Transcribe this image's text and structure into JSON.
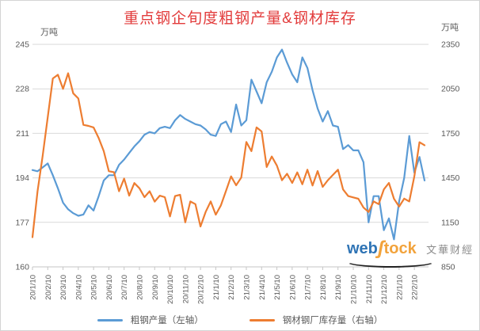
{
  "title_color": "#e23b3b",
  "watermark": {
    "web": "web",
    "swoosh": "ʃ",
    "tock": "tock",
    "suffix": "文華财經"
  },
  "chart_data": {
    "type": "line",
    "title": "重点钢企旬度粗钢产量&钢材库存",
    "grid": "horizontal-only",
    "legend_position": "bottom",
    "left_axis": {
      "unit": "万吨",
      "min": 160,
      "max": 245,
      "ticks": [
        245,
        228,
        211,
        194,
        177,
        160
      ]
    },
    "right_axis": {
      "unit": "万吨",
      "min": 850,
      "max": 2350,
      "ticks": [
        2350,
        2050,
        1750,
        1450,
        1150,
        850
      ]
    },
    "x_tick_labels": [
      "20/1/10",
      "20/2/10",
      "20/3/10",
      "20/4/10",
      "20/5/10",
      "20/6/10",
      "20/7/10",
      "20/8/10",
      "20/9/10",
      "20/10/10",
      "20/11/10",
      "20/12/10",
      "21/1/10",
      "21/2/10",
      "21/3/10",
      "21/4/10",
      "21/5/10",
      "21/6/10",
      "21/7/10",
      "21/8/10",
      "21/9/10",
      "21/10/10",
      "21/11/10",
      "21/12/10",
      "22/1/10",
      "22/2/10"
    ],
    "x": [
      "20/1/10",
      "20/1/20",
      "20/1/31",
      "20/2/10",
      "20/2/20",
      "20/2/29",
      "20/3/10",
      "20/3/20",
      "20/3/31",
      "20/4/10",
      "20/4/20",
      "20/4/30",
      "20/5/10",
      "20/5/20",
      "20/5/31",
      "20/6/10",
      "20/6/20",
      "20/6/30",
      "20/7/10",
      "20/7/20",
      "20/7/31",
      "20/8/10",
      "20/8/20",
      "20/8/31",
      "20/9/10",
      "20/9/20",
      "20/9/30",
      "20/10/10",
      "20/10/20",
      "20/10/31",
      "20/11/10",
      "20/11/20",
      "20/11/30",
      "20/12/10",
      "20/12/20",
      "20/12/31",
      "21/1/10",
      "21/1/20",
      "21/1/31",
      "21/2/10",
      "21/2/20",
      "21/2/28",
      "21/3/10",
      "21/3/20",
      "21/3/31",
      "21/4/10",
      "21/4/20",
      "21/4/30",
      "21/5/10",
      "21/5/20",
      "21/5/31",
      "21/6/10",
      "21/6/20",
      "21/6/30",
      "21/7/10",
      "21/7/20",
      "21/7/31",
      "21/8/10",
      "21/8/20",
      "21/8/31",
      "21/9/10",
      "21/9/20",
      "21/9/30",
      "21/10/10",
      "21/10/20",
      "21/10/31",
      "21/11/10",
      "21/11/20",
      "21/11/30",
      "21/12/10",
      "21/12/20",
      "21/12/31",
      "22/1/10",
      "22/1/20",
      "22/1/31",
      "22/2/10",
      "22/2/20",
      "22/2/28"
    ],
    "series": [
      {
        "name": "粗钢产量（左轴）",
        "axis": "left",
        "color": "#5b9bd5",
        "values": [
          197,
          196.5,
          198,
          199.5,
          195,
          190,
          184.5,
          182,
          180.5,
          179.5,
          180,
          183.5,
          181.5,
          187,
          193,
          195,
          195,
          199,
          201,
          203.5,
          206,
          208,
          210.5,
          211.5,
          211,
          213,
          213.5,
          213,
          216,
          218,
          216.5,
          215.5,
          214.5,
          214,
          212.5,
          210.5,
          210,
          214.5,
          215.5,
          211.5,
          222,
          214,
          216,
          231.5,
          227,
          222.5,
          230.5,
          234.5,
          240,
          243,
          238,
          233.5,
          230.5,
          240,
          236,
          227.5,
          220.5,
          215.5,
          219.5,
          214,
          213.5,
          205,
          206.5,
          204.5,
          204.5,
          200,
          177,
          187,
          187,
          174,
          178.5,
          170.5,
          185,
          194,
          210,
          196,
          202,
          193
        ]
      },
      {
        "name": "钢材钢厂库存量（右轴）",
        "axis": "right",
        "color": "#ed7d31",
        "values": [
          1050,
          1360,
          1600,
          1860,
          2120,
          2145,
          2050,
          2155,
          2020,
          1985,
          1807,
          1800,
          1790,
          1718,
          1630,
          1495,
          1488,
          1360,
          1445,
          1330,
          1415,
          1380,
          1320,
          1360,
          1290,
          1330,
          1320,
          1190,
          1327,
          1336,
          1150,
          1291,
          1273,
          1122,
          1220,
          1291,
          1202,
          1265,
          1362,
          1460,
          1400,
          1452,
          1692,
          1630,
          1790,
          1763,
          1523,
          1594,
          1532,
          1434,
          1478,
          1416,
          1487,
          1407,
          1505,
          1398,
          1496,
          1389,
          1434,
          1470,
          1505,
          1372,
          1327,
          1318,
          1309,
          1250,
          1220,
          1291,
          1273,
          1372,
          1416,
          1309,
          1256,
          1310,
          1291,
          1460,
          1690,
          1670
        ]
      }
    ]
  }
}
